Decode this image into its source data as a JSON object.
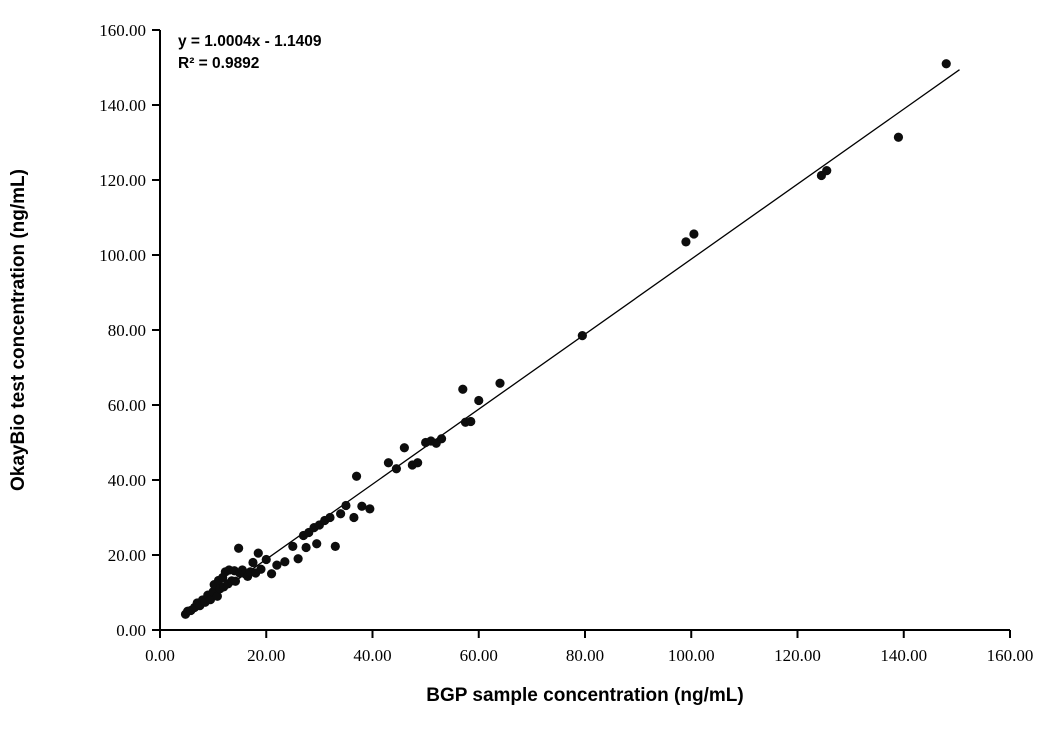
{
  "chart_data": {
    "type": "scatter",
    "title": "",
    "xlabel": "BGP sample concentration (ng/mL)",
    "ylabel": "OkayBio test concentration (ng/mL)",
    "xlim": [
      0,
      160
    ],
    "ylim": [
      0,
      160
    ],
    "xticks": [
      0,
      20,
      40,
      60,
      80,
      100,
      120,
      140,
      160
    ],
    "yticks": [
      0,
      20,
      40,
      60,
      80,
      100,
      120,
      140,
      160
    ],
    "tick_decimals": 2,
    "grid": false,
    "legend": false,
    "marker_color": "#0d0d0d",
    "marker_radius": 4.6,
    "axis_color": "#000000",
    "annotations": [
      "y = 1.0004x - 1.1409",
      "R² = 0.9892"
    ],
    "trendline": {
      "slope": 1.0004,
      "intercept": -1.1409,
      "x_range": [
        4.5,
        150.5
      ],
      "color": "#000000"
    },
    "points": [
      [
        4.8,
        4.2
      ],
      [
        5.2,
        5.0
      ],
      [
        5.8,
        5.2
      ],
      [
        6.5,
        6.0
      ],
      [
        7.0,
        7.2
      ],
      [
        7.5,
        6.5
      ],
      [
        8.0,
        8.0
      ],
      [
        8.5,
        7.4
      ],
      [
        9.0,
        9.3
      ],
      [
        9.5,
        8.1
      ],
      [
        10.0,
        10.2
      ],
      [
        10.2,
        12.1
      ],
      [
        10.8,
        9.0
      ],
      [
        11.0,
        13.2
      ],
      [
        11.3,
        11.0
      ],
      [
        11.8,
        14.0
      ],
      [
        12.0,
        11.5
      ],
      [
        12.3,
        15.5
      ],
      [
        12.8,
        12.3
      ],
      [
        13.0,
        16.0
      ],
      [
        13.5,
        13.1
      ],
      [
        14.0,
        15.8
      ],
      [
        14.2,
        13.0
      ],
      [
        14.8,
        21.8
      ],
      [
        15.0,
        15.2
      ],
      [
        15.5,
        16.0
      ],
      [
        16.0,
        15.0
      ],
      [
        16.5,
        14.3
      ],
      [
        17.0,
        15.5
      ],
      [
        17.5,
        18.0
      ],
      [
        18.0,
        15.2
      ],
      [
        18.5,
        20.5
      ],
      [
        19.0,
        16.2
      ],
      [
        20.0,
        18.8
      ],
      [
        21.0,
        15.0
      ],
      [
        22.0,
        17.3
      ],
      [
        23.5,
        18.2
      ],
      [
        25.0,
        22.3
      ],
      [
        26.0,
        19.0
      ],
      [
        27.0,
        25.2
      ],
      [
        27.5,
        22.0
      ],
      [
        28.0,
        26.0
      ],
      [
        29.0,
        27.3
      ],
      [
        29.5,
        23.0
      ],
      [
        30.0,
        28.0
      ],
      [
        31.0,
        29.2
      ],
      [
        32.0,
        30.0
      ],
      [
        33.0,
        22.3
      ],
      [
        34.0,
        31.0
      ],
      [
        35.0,
        33.2
      ],
      [
        36.5,
        30.0
      ],
      [
        37.0,
        41.0
      ],
      [
        38.0,
        33.0
      ],
      [
        39.5,
        32.3
      ],
      [
        43.0,
        44.6
      ],
      [
        44.5,
        43.0
      ],
      [
        46.0,
        48.6
      ],
      [
        47.5,
        44.0
      ],
      [
        48.5,
        44.6
      ],
      [
        50.0,
        50.0
      ],
      [
        51.0,
        50.4
      ],
      [
        52.0,
        49.8
      ],
      [
        53.0,
        51.0
      ],
      [
        57.0,
        64.2
      ],
      [
        57.5,
        55.4
      ],
      [
        58.5,
        55.6
      ],
      [
        60.0,
        61.2
      ],
      [
        64.0,
        65.8
      ],
      [
        79.5,
        78.5
      ],
      [
        99.0,
        103.5
      ],
      [
        100.5,
        105.6
      ],
      [
        124.5,
        121.2
      ],
      [
        125.5,
        122.5
      ],
      [
        139.0,
        131.4
      ],
      [
        148.0,
        151.0
      ]
    ]
  }
}
